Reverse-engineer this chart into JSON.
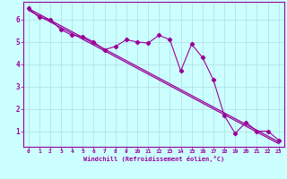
{
  "x": [
    0,
    1,
    2,
    3,
    4,
    5,
    6,
    7,
    8,
    9,
    10,
    11,
    12,
    13,
    14,
    15,
    16,
    17,
    18,
    19,
    20,
    21,
    22,
    23
  ],
  "series1": [
    6.5,
    6.1,
    6.0,
    5.55,
    5.3,
    5.25,
    5.0,
    4.65,
    4.8,
    5.1,
    5.0,
    4.95,
    5.3,
    5.1,
    3.7,
    4.9,
    4.3,
    3.3,
    1.7,
    0.9,
    1.4,
    1.0,
    1.0,
    0.6
  ],
  "reg_upper": [
    6.5,
    6.24,
    5.98,
    5.72,
    5.46,
    5.2,
    4.94,
    4.68,
    4.42,
    4.16,
    3.9,
    3.64,
    3.38,
    3.12,
    2.86,
    2.6,
    2.34,
    2.08,
    1.82,
    1.56,
    1.3,
    1.04,
    0.78,
    0.52
  ],
  "reg_lower": [
    6.42,
    6.16,
    5.9,
    5.64,
    5.38,
    5.12,
    4.86,
    4.6,
    4.34,
    4.08,
    3.82,
    3.56,
    3.3,
    3.04,
    2.78,
    2.52,
    2.26,
    2.0,
    1.74,
    1.48,
    1.22,
    0.96,
    0.7,
    0.44
  ],
  "color": "#990099",
  "bg_color": "#ccffff",
  "grid_color": "#b0dde0",
  "xlabel": "Windchill (Refroidissement éolien,°C)",
  "ylim": [
    0.3,
    6.8
  ],
  "xlim": [
    -0.5,
    23.5
  ],
  "yticks": [
    1,
    2,
    3,
    4,
    5,
    6
  ],
  "xticks": [
    0,
    1,
    2,
    3,
    4,
    5,
    6,
    7,
    8,
    9,
    10,
    11,
    12,
    13,
    14,
    15,
    16,
    17,
    18,
    19,
    20,
    21,
    22,
    23
  ]
}
